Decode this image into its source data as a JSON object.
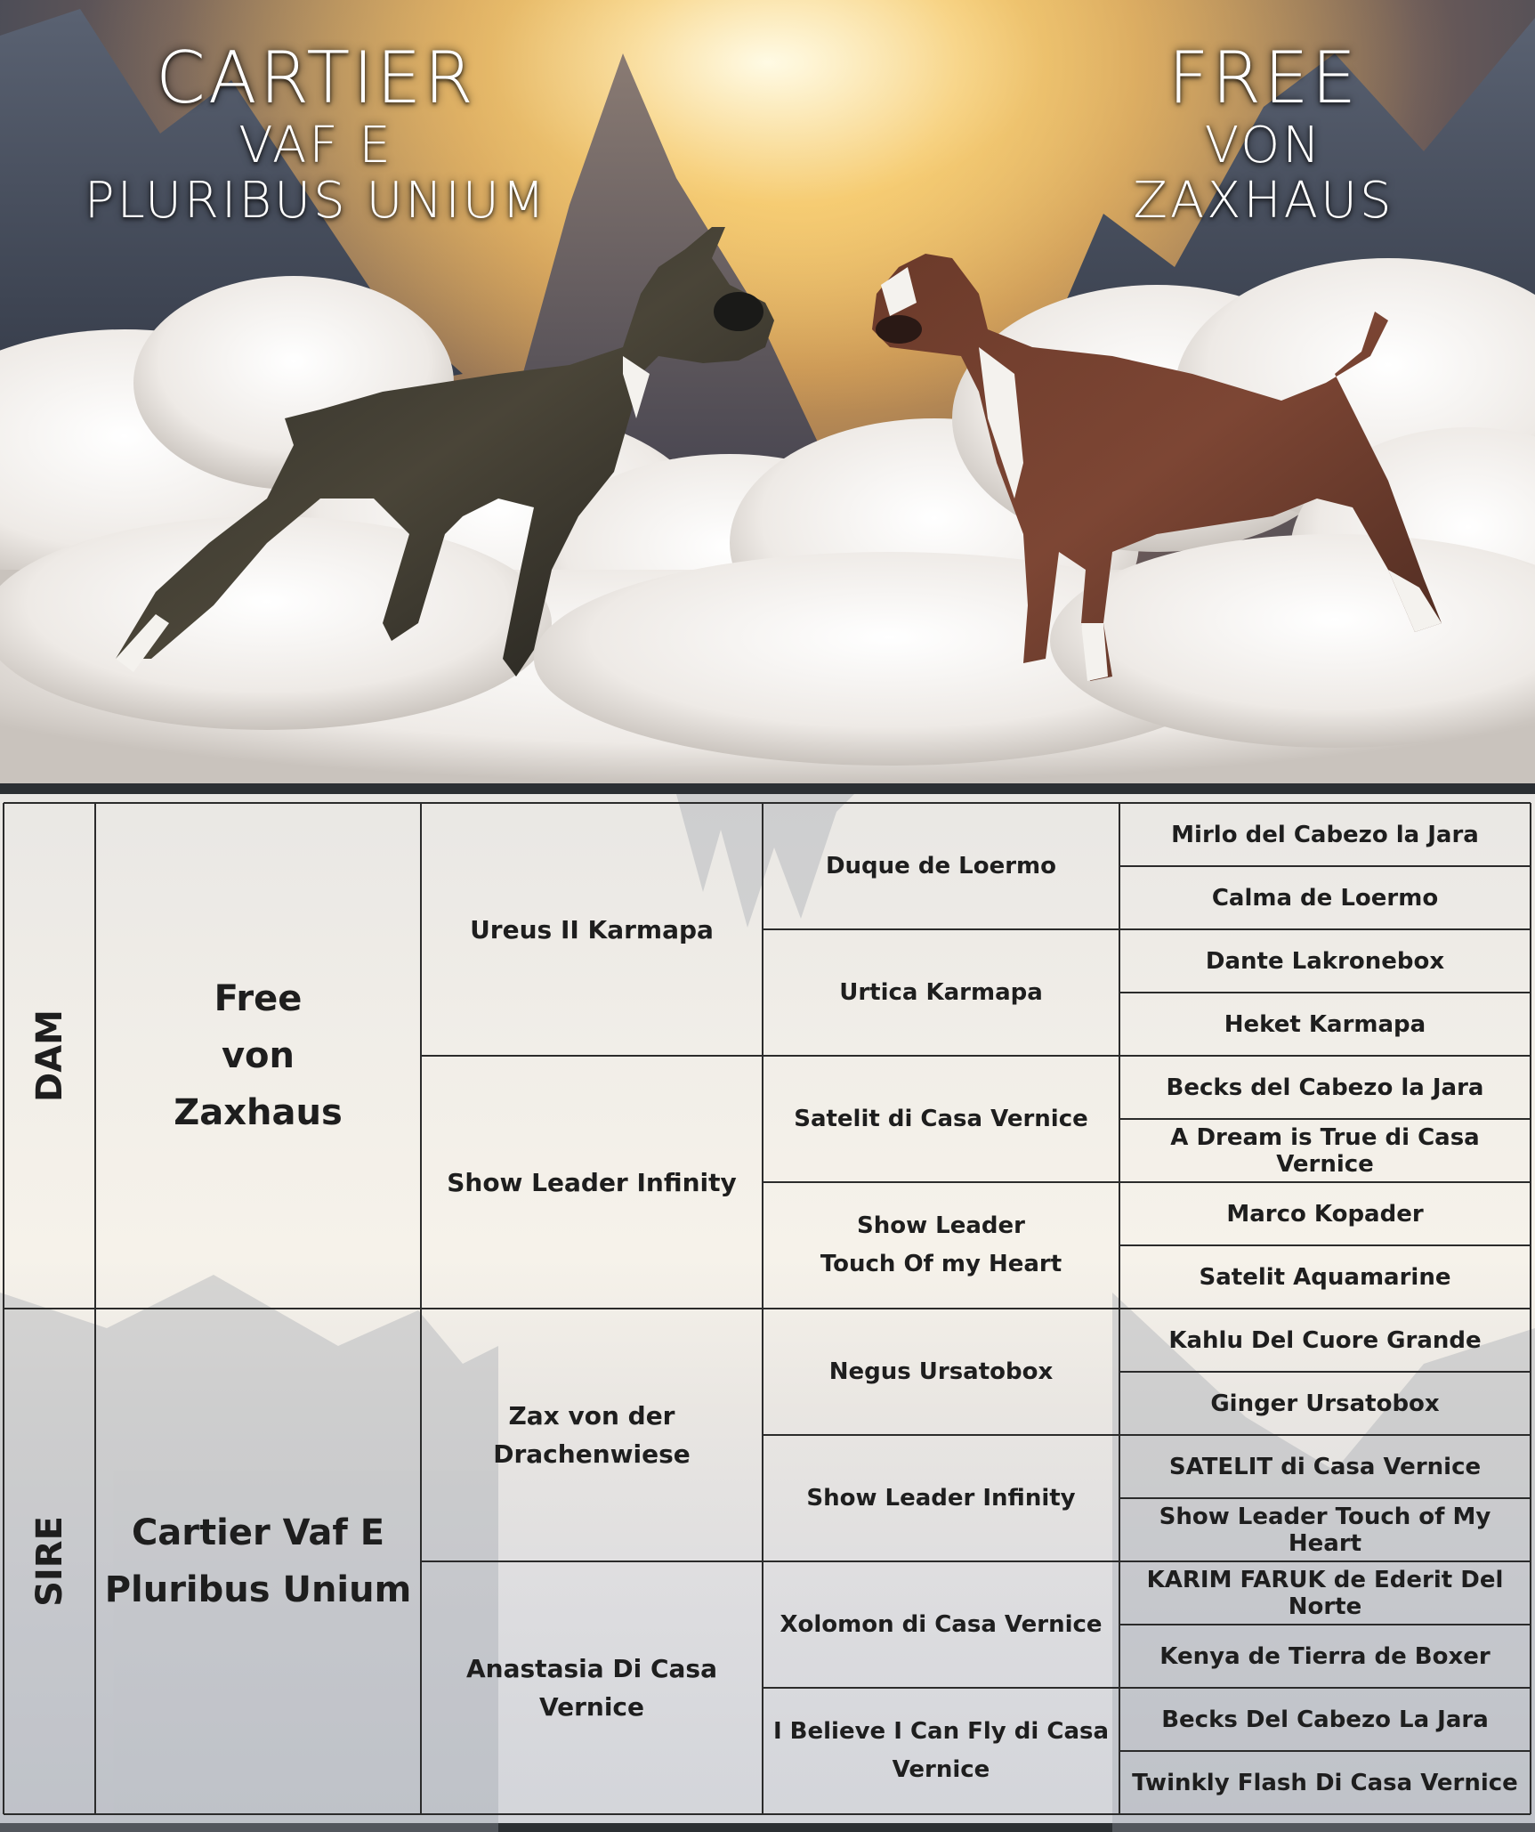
{
  "hero": {
    "left_title": {
      "line1": "CARTIER",
      "line2": "VAF E",
      "line3": "PLURIBUS UNIUM"
    },
    "right_title": {
      "line1": "FREE",
      "line2": "VON",
      "line3": "ZAXHAUS"
    },
    "images": [
      "brindle-boxer-dog",
      "red-brindle-boxer-dog",
      "mountains",
      "clouds"
    ]
  },
  "pedigree": {
    "dam": {
      "side_label": "DAM",
      "name_lines": [
        "Free",
        "von",
        "Zaxhaus"
      ],
      "parents": [
        {
          "name": "Ureus II Karmapa",
          "parents": [
            {
              "name": "Duque de Loermo",
              "parents": [
                "Mirlo del Cabezo la Jara",
                "Calma de Loermo"
              ]
            },
            {
              "name": "Urtica Karmapa",
              "parents": [
                "Dante Lakronebox",
                "Heket Karmapa"
              ]
            }
          ]
        },
        {
          "name": "Show Leader Infinity",
          "parents": [
            {
              "name": "Satelit di Casa Vernice",
              "parents": [
                "Becks del Cabezo la Jara",
                "A Dream is True di Casa Vernice"
              ]
            },
            {
              "name": "Show Leader\nTouch Of my Heart",
              "parents": [
                "Marco Kopader",
                "Satelit Aquamarine"
              ]
            }
          ]
        }
      ]
    },
    "sire": {
      "side_label": "SIRE",
      "name_lines": [
        "Cartier Vaf E",
        "Pluribus Unium"
      ],
      "parents": [
        {
          "name": "Zax von der\nDrachenwiese",
          "parents": [
            {
              "name": "Negus Ursatobox",
              "parents": [
                "Kahlu Del Cuore Grande",
                "Ginger Ursatobox"
              ]
            },
            {
              "name": "Show Leader Infinity",
              "parents": [
                "SATELIT di Casa Vernice",
                "Show Leader Touch of My Heart"
              ]
            }
          ]
        },
        {
          "name": "Anastasia Di Casa\nVernice",
          "parents": [
            {
              "name": "Xolomon di Casa Vernice",
              "parents": [
                "KARIM FARUK de Ederit Del Norte",
                "Kenya de Tierra de Boxer"
              ]
            },
            {
              "name": "I Believe I Can Fly di Casa\nVernice",
              "parents": [
                "Becks Del Cabezo La Jara",
                "Twinkly Flash Di Casa Vernice"
              ]
            }
          ]
        }
      ]
    }
  }
}
